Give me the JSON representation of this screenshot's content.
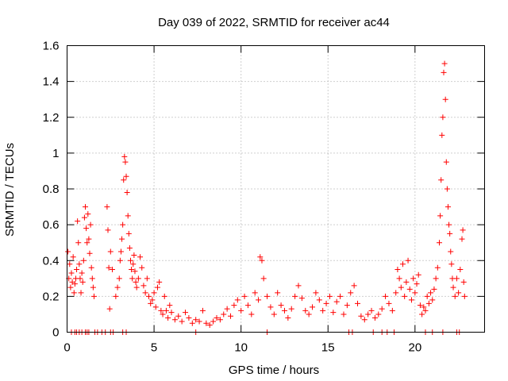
{
  "chart_data": {
    "type": "scatter",
    "title": "Day 039 of 2022, SRMTID for receiver ac44",
    "xlabel": "GPS time / hours",
    "ylabel": "SRMTID / TECUs",
    "xlim": [
      0,
      24
    ],
    "ylim": [
      0,
      1.6
    ],
    "xticks": [
      0,
      5,
      10,
      15,
      20
    ],
    "xtick_labels": [
      "0",
      "5",
      "10",
      "15",
      "20"
    ],
    "yticks": [
      0,
      0.2,
      0.4,
      0.6,
      0.8,
      1,
      1.2,
      1.4,
      1.6
    ],
    "ytick_labels": [
      "0",
      "0.2",
      "0.4",
      "0.6",
      "0.8",
      "1",
      "1.2",
      "1.4",
      "1.6"
    ],
    "grid": true,
    "marker": "+",
    "color": "#ff0000",
    "series": [
      {
        "name": "SRMTID",
        "points": [
          [
            0.05,
            0.45
          ],
          [
            0.1,
            0.3
          ],
          [
            0.15,
            0.38
          ],
          [
            0.2,
            0.25
          ],
          [
            0.25,
            0.33
          ],
          [
            0.3,
            0.28
          ],
          [
            0.35,
            0.42
          ],
          [
            0.4,
            0.22
          ],
          [
            0.45,
            0.27
          ],
          [
            0.5,
            0.3
          ],
          [
            0.55,
            0.35
          ],
          [
            0.6,
            0.62
          ],
          [
            0.65,
            0.5
          ],
          [
            0.7,
            0.38
          ],
          [
            0.75,
            0.3
          ],
          [
            0.8,
            0.22
          ],
          [
            0.85,
            0.33
          ],
          [
            0.9,
            0.28
          ],
          [
            0.95,
            0.4
          ],
          [
            1.0,
            0.64
          ],
          [
            1.05,
            0.7
          ],
          [
            1.1,
            0.58
          ],
          [
            1.15,
            0.5
          ],
          [
            1.2,
            0.66
          ],
          [
            1.25,
            0.52
          ],
          [
            1.3,
            0.44
          ],
          [
            1.35,
            0.6
          ],
          [
            1.4,
            0.36
          ],
          [
            1.45,
            0.3
          ],
          [
            1.5,
            0.25
          ],
          [
            1.55,
            0.2
          ],
          [
            2.3,
            0.7
          ],
          [
            2.35,
            0.57
          ],
          [
            2.4,
            0.36
          ],
          [
            2.45,
            0.13
          ],
          [
            2.5,
            0.45
          ],
          [
            2.6,
            0.35
          ],
          [
            2.8,
            0.2
          ],
          [
            2.9,
            0.25
          ],
          [
            3.0,
            0.3
          ],
          [
            3.05,
            0.4
          ],
          [
            3.1,
            0.45
          ],
          [
            3.15,
            0.52
          ],
          [
            3.2,
            0.6
          ],
          [
            3.25,
            0.85
          ],
          [
            3.3,
            0.98
          ],
          [
            3.35,
            0.95
          ],
          [
            3.4,
            0.87
          ],
          [
            3.45,
            0.78
          ],
          [
            3.5,
            0.65
          ],
          [
            3.55,
            0.55
          ],
          [
            3.6,
            0.47
          ],
          [
            3.65,
            0.4
          ],
          [
            3.7,
            0.35
          ],
          [
            3.75,
            0.3
          ],
          [
            3.8,
            0.38
          ],
          [
            3.85,
            0.43
          ],
          [
            3.9,
            0.34
          ],
          [
            3.95,
            0.28
          ],
          [
            4.0,
            0.25
          ],
          [
            4.1,
            0.3
          ],
          [
            4.2,
            0.42
          ],
          [
            4.3,
            0.36
          ],
          [
            4.4,
            0.26
          ],
          [
            4.5,
            0.22
          ],
          [
            4.6,
            0.3
          ],
          [
            4.7,
            0.2
          ],
          [
            4.8,
            0.16
          ],
          [
            4.9,
            0.18
          ],
          [
            5.0,
            0.22
          ],
          [
            5.1,
            0.14
          ],
          [
            5.2,
            0.25
          ],
          [
            5.3,
            0.28
          ],
          [
            5.4,
            0.12
          ],
          [
            5.5,
            0.1
          ],
          [
            5.6,
            0.2
          ],
          [
            5.7,
            0.12
          ],
          [
            5.8,
            0.08
          ],
          [
            5.9,
            0.15
          ],
          [
            6.0,
            0.11
          ],
          [
            6.2,
            0.07
          ],
          [
            6.4,
            0.09
          ],
          [
            6.6,
            0.06
          ],
          [
            6.8,
            0.11
          ],
          [
            7.0,
            0.08
          ],
          [
            7.2,
            0.05
          ],
          [
            7.4,
            0.07
          ],
          [
            7.6,
            0.06
          ],
          [
            7.8,
            0.12
          ],
          [
            8.0,
            0.05
          ],
          [
            8.2,
            0.04
          ],
          [
            8.4,
            0.06
          ],
          [
            8.6,
            0.08
          ],
          [
            8.8,
            0.07
          ],
          [
            9.0,
            0.1
          ],
          [
            9.2,
            0.13
          ],
          [
            9.4,
            0.09
          ],
          [
            9.6,
            0.15
          ],
          [
            9.8,
            0.18
          ],
          [
            10.0,
            0.12
          ],
          [
            10.2,
            0.2
          ],
          [
            10.4,
            0.15
          ],
          [
            10.6,
            0.1
          ],
          [
            10.8,
            0.22
          ],
          [
            11.0,
            0.18
          ],
          [
            11.1,
            0.42
          ],
          [
            11.2,
            0.4
          ],
          [
            11.3,
            0.3
          ],
          [
            11.5,
            0.2
          ],
          [
            11.7,
            0.14
          ],
          [
            11.9,
            0.1
          ],
          [
            12.1,
            0.22
          ],
          [
            12.3,
            0.15
          ],
          [
            12.5,
            0.12
          ],
          [
            12.7,
            0.08
          ],
          [
            12.9,
            0.13
          ],
          [
            13.1,
            0.2
          ],
          [
            13.3,
            0.26
          ],
          [
            13.5,
            0.19
          ],
          [
            13.7,
            0.12
          ],
          [
            13.9,
            0.1
          ],
          [
            14.1,
            0.14
          ],
          [
            14.3,
            0.22
          ],
          [
            14.5,
            0.18
          ],
          [
            14.7,
            0.12
          ],
          [
            14.9,
            0.16
          ],
          [
            15.1,
            0.2
          ],
          [
            15.3,
            0.11
          ],
          [
            15.5,
            0.17
          ],
          [
            15.7,
            0.2
          ],
          [
            15.9,
            0.1
          ],
          [
            16.1,
            0.15
          ],
          [
            16.3,
            0.22
          ],
          [
            16.5,
            0.26
          ],
          [
            16.7,
            0.16
          ],
          [
            16.9,
            0.09
          ],
          [
            17.1,
            0.07
          ],
          [
            17.3,
            0.1
          ],
          [
            17.5,
            0.12
          ],
          [
            17.7,
            0.08
          ],
          [
            17.9,
            0.1
          ],
          [
            18.1,
            0.13
          ],
          [
            18.3,
            0.2
          ],
          [
            18.5,
            0.16
          ],
          [
            18.7,
            0.12
          ],
          [
            18.9,
            0.22
          ],
          [
            19.0,
            0.35
          ],
          [
            19.1,
            0.3
          ],
          [
            19.2,
            0.25
          ],
          [
            19.3,
            0.38
          ],
          [
            19.4,
            0.2
          ],
          [
            19.5,
            0.28
          ],
          [
            19.6,
            0.4
          ],
          [
            19.7,
            0.24
          ],
          [
            19.8,
            0.18
          ],
          [
            19.9,
            0.3
          ],
          [
            20.0,
            0.22
          ],
          [
            20.1,
            0.27
          ],
          [
            20.2,
            0.32
          ],
          [
            20.3,
            0.15
          ],
          [
            20.4,
            0.1
          ],
          [
            20.5,
            0.14
          ],
          [
            20.6,
            0.12
          ],
          [
            20.7,
            0.2
          ],
          [
            20.8,
            0.16
          ],
          [
            20.9,
            0.22
          ],
          [
            21.0,
            0.18
          ],
          [
            21.1,
            0.24
          ],
          [
            21.2,
            0.3
          ],
          [
            21.3,
            0.36
          ],
          [
            21.4,
            0.5
          ],
          [
            21.45,
            0.65
          ],
          [
            21.5,
            0.85
          ],
          [
            21.55,
            1.1
          ],
          [
            21.6,
            1.2
          ],
          [
            21.65,
            1.45
          ],
          [
            21.7,
            1.5
          ],
          [
            21.75,
            1.3
          ],
          [
            21.8,
            0.95
          ],
          [
            21.85,
            0.8
          ],
          [
            21.9,
            0.7
          ],
          [
            21.95,
            0.6
          ],
          [
            22.0,
            0.55
          ],
          [
            22.05,
            0.45
          ],
          [
            22.1,
            0.38
          ],
          [
            22.15,
            0.3
          ],
          [
            22.2,
            0.25
          ],
          [
            22.3,
            0.2
          ],
          [
            22.4,
            0.3
          ],
          [
            22.5,
            0.22
          ],
          [
            22.6,
            0.35
          ],
          [
            22.7,
            0.52
          ],
          [
            22.75,
            0.57
          ],
          [
            22.8,
            0.28
          ],
          [
            22.85,
            0.2
          ],
          [
            0.25,
            0
          ],
          [
            0.45,
            0
          ],
          [
            0.55,
            0
          ],
          [
            0.7,
            0
          ],
          [
            0.85,
            0
          ],
          [
            1.05,
            0
          ],
          [
            1.15,
            0
          ],
          [
            1.25,
            0
          ],
          [
            1.6,
            0
          ],
          [
            1.75,
            0
          ],
          [
            2.0,
            0
          ],
          [
            2.2,
            0
          ],
          [
            2.5,
            0
          ],
          [
            2.65,
            0
          ],
          [
            3.2,
            0
          ],
          [
            3.4,
            0
          ],
          [
            7.4,
            0
          ],
          [
            11.5,
            0
          ],
          [
            16.2,
            0
          ],
          [
            16.4,
            0
          ],
          [
            17.6,
            0
          ],
          [
            18.1,
            0
          ],
          [
            18.4,
            0
          ],
          [
            18.8,
            0
          ],
          [
            20.6,
            0
          ],
          [
            21.0,
            0
          ],
          [
            21.6,
            0
          ],
          [
            22.4,
            0
          ],
          [
            22.55,
            0
          ]
        ]
      }
    ]
  }
}
